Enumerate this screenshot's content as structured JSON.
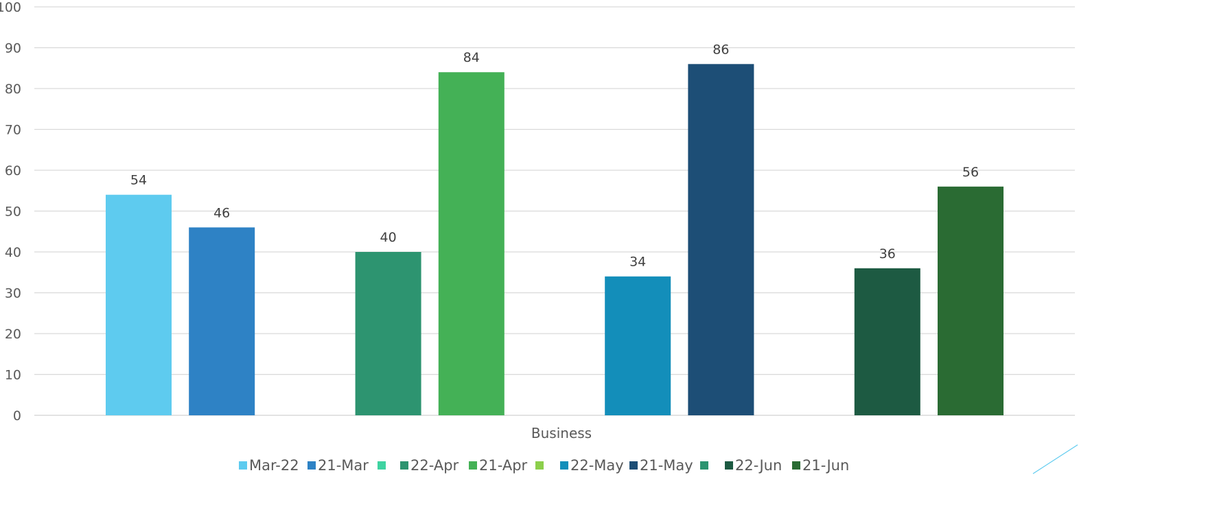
{
  "chart_data": {
    "type": "bar",
    "categories": [
      "Business"
    ],
    "xlabel": "",
    "ylabel": "",
    "ylim": [
      0,
      100
    ],
    "yticks": [
      0,
      10,
      20,
      30,
      40,
      50,
      60,
      70,
      80,
      90,
      100
    ],
    "grid": true,
    "legend_position": "bottom",
    "data_labels": true,
    "series": [
      {
        "name": "Mar-22",
        "color": "#5ECBEF",
        "values": [
          54
        ]
      },
      {
        "name": "21-Mar",
        "color": "#2E82C5",
        "values": [
          46
        ]
      },
      {
        "name": "",
        "color": "#3FD3A1",
        "values": [
          null
        ]
      },
      {
        "name": "22-Apr",
        "color": "#2D9470",
        "values": [
          40
        ]
      },
      {
        "name": "21-Apr",
        "color": "#44B156",
        "values": [
          84
        ]
      },
      {
        "name": "",
        "color": "#8CCF4B",
        "values": [
          null
        ]
      },
      {
        "name": "22-May",
        "color": "#138EBA",
        "values": [
          34
        ]
      },
      {
        "name": "21-May",
        "color": "#1D4E76",
        "values": [
          86
        ]
      },
      {
        "name": "",
        "color": "#2D9470",
        "values": [
          null
        ]
      },
      {
        "name": "22-Jun",
        "color": "#1D5A42",
        "values": [
          36
        ]
      },
      {
        "name": "21-Jun",
        "color": "#2A6B33",
        "values": [
          56
        ]
      }
    ]
  }
}
